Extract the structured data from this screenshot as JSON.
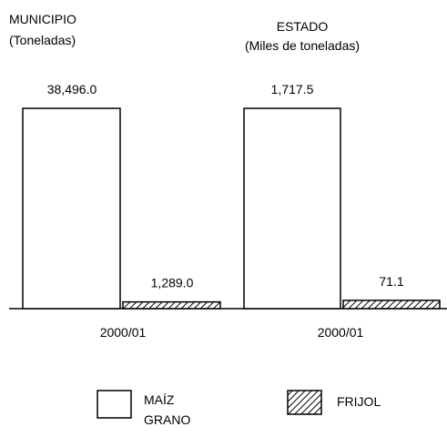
{
  "colors": {
    "ink": "#000000",
    "bar_fill": "#ffffff",
    "hatch": "#000000"
  },
  "legend": [
    {
      "label_lines": [
        "MAÍZ",
        "GRANO"
      ],
      "pattern": "solid-white"
    },
    {
      "label_lines": [
        "FRIJOL"
      ],
      "pattern": "diagonal-hatch"
    }
  ],
  "chart_data": [
    {
      "type": "bar",
      "title": "MUNICIPIO",
      "subtitle": "(Toneladas)",
      "categories": [
        "2000/01"
      ],
      "series": [
        {
          "name": "MAÍZ GRANO",
          "values": [
            38496.0
          ]
        },
        {
          "name": "FRIJOL",
          "values": [
            1289.0
          ]
        }
      ],
      "data_labels": [
        "38,496.0",
        "1,289.0"
      ],
      "grid": false
    },
    {
      "type": "bar",
      "title": "ESTADO",
      "subtitle": "(Miles de toneladas)",
      "categories": [
        "2000/01"
      ],
      "series": [
        {
          "name": "MAÍZ GRANO",
          "values": [
            1717.5
          ]
        },
        {
          "name": "FRIJOL",
          "values": [
            71.1
          ]
        }
      ],
      "data_labels": [
        "1,717.5",
        "71.1"
      ],
      "grid": false
    }
  ]
}
